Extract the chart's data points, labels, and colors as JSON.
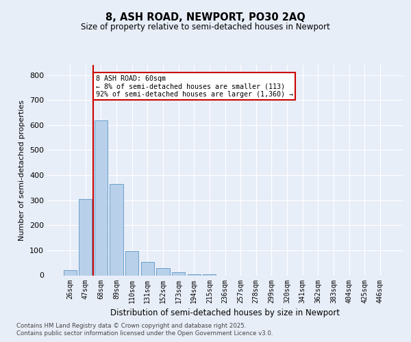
{
  "title1": "8, ASH ROAD, NEWPORT, PO30 2AQ",
  "title2": "Size of property relative to semi-detached houses in Newport",
  "xlabel": "Distribution of semi-detached houses by size in Newport",
  "ylabel": "Number of semi-detached properties",
  "categories": [
    "26sqm",
    "47sqm",
    "68sqm",
    "89sqm",
    "110sqm",
    "131sqm",
    "152sqm",
    "173sqm",
    "194sqm",
    "215sqm",
    "236sqm",
    "257sqm",
    "278sqm",
    "299sqm",
    "320sqm",
    "341sqm",
    "362sqm",
    "383sqm",
    "404sqm",
    "425sqm",
    "446sqm"
  ],
  "values": [
    20,
    305,
    620,
    365,
    97,
    52,
    28,
    12,
    5,
    3,
    0,
    0,
    0,
    0,
    0,
    0,
    0,
    0,
    0,
    0,
    0
  ],
  "bar_color": "#b8d0ea",
  "bar_edge_color": "#6aa0cc",
  "red_line_x": 1.5,
  "annotation_text": "8 ASH ROAD: 60sqm\n← 8% of semi-detached houses are smaller (113)\n92% of semi-detached houses are larger (1,360) →",
  "annotation_box_color": "#ffffff",
  "annotation_box_edge": "#cc0000",
  "ylim": [
    0,
    840
  ],
  "yticks": [
    0,
    100,
    200,
    300,
    400,
    500,
    600,
    700,
    800
  ],
  "background_color": "#e8eef8",
  "plot_bg_color": "#e8eef8",
  "footer_line1": "Contains HM Land Registry data © Crown copyright and database right 2025.",
  "footer_line2": "Contains public sector information licensed under the Open Government Licence v3.0.",
  "grid_color": "#ffffff",
  "red_line_color": "#cc0000"
}
